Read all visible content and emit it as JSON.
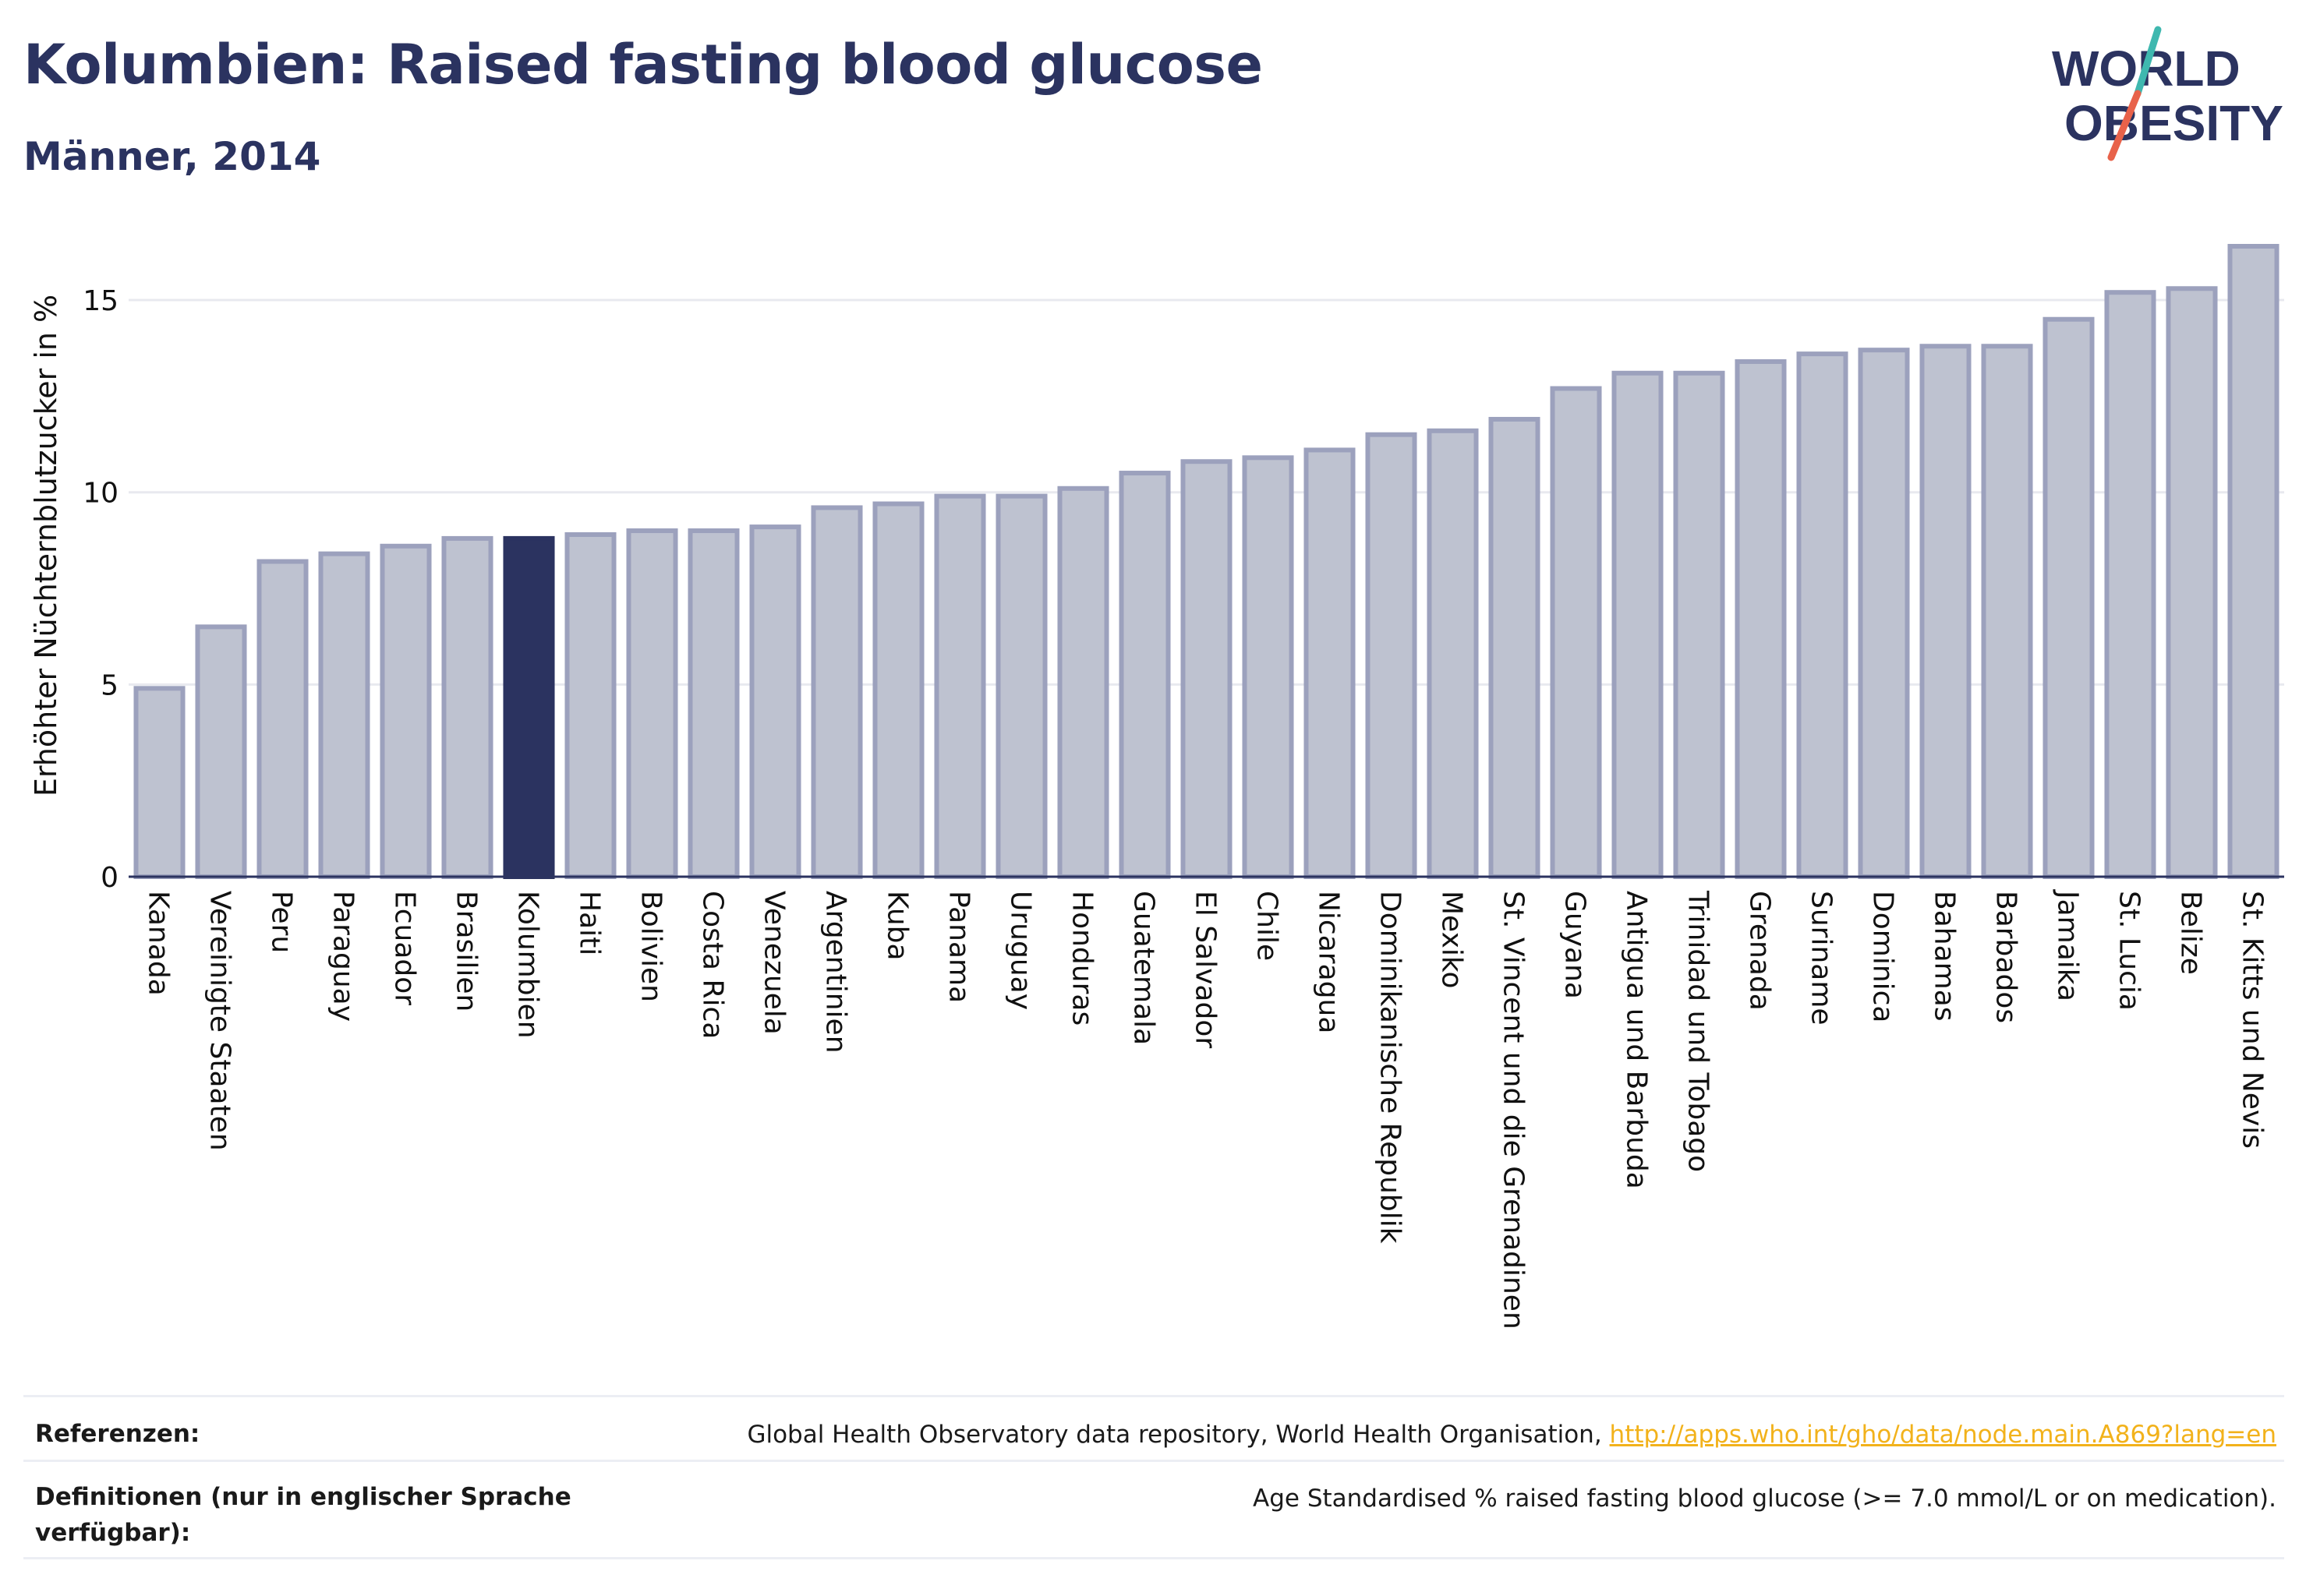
{
  "header": {
    "title": "Kolumbien: Raised fasting blood glucose",
    "subtitle": "Männer, 2014"
  },
  "logo": {
    "line1": "WORLD",
    "line2": "OBESITY"
  },
  "chart_data": {
    "type": "bar",
    "ylabel": "Erhöhter Nüchternblutzucker in %",
    "xlabel": "",
    "ylim": [
      0,
      16.4
    ],
    "yticks": [
      0,
      5,
      10,
      15
    ],
    "grid": true,
    "highlight": "Kolumbien",
    "categories": [
      "Kanada",
      "Vereinigte Staaten",
      "Peru",
      "Paraguay",
      "Ecuador",
      "Brasilien",
      "Kolumbien",
      "Haiti",
      "Bolivien",
      "Costa Rica",
      "Venezuela",
      "Argentinien",
      "Kuba",
      "Panama",
      "Uruguay",
      "Honduras",
      "Guatemala",
      "El Salvador",
      "Chile",
      "Nicaragua",
      "Dominikanische Republik",
      "Mexiko",
      "St. Vincent und die Grenadinen",
      "Guyana",
      "Antigua und Barbuda",
      "Trinidad und Tobago",
      "Grenada",
      "Suriname",
      "Dominica",
      "Bahamas",
      "Barbados",
      "Jamaika",
      "St. Lucia",
      "Belize",
      "St. Kitts und Nevis"
    ],
    "values": [
      4.9,
      6.5,
      8.2,
      8.4,
      8.6,
      8.8,
      8.8,
      8.9,
      9.0,
      9.0,
      9.1,
      9.6,
      9.7,
      9.9,
      9.9,
      10.1,
      10.5,
      10.8,
      10.9,
      11.1,
      11.5,
      11.6,
      11.9,
      12.7,
      13.1,
      13.1,
      13.4,
      13.6,
      13.7,
      13.8,
      13.8,
      14.5,
      15.2,
      15.3,
      16.4
    ]
  },
  "colors": {
    "bar": "#bec2d0",
    "bar_edge": "#9ca1bd",
    "highlight": "#2b3360",
    "text": "#2b3360",
    "grid": "#e8e9ef",
    "link": "#f2b21b",
    "logo_teal": "#3fb8af",
    "logo_red": "#e8624a"
  },
  "footer": {
    "references_label": "Referenzen:",
    "references_text": "Global Health Observatory data repository, World Health Organisation, ",
    "references_link": "http://apps.who.int/gho/data/node.main.A869?lang=en",
    "definitions_label": "Definitionen (nur in englischer Sprache verfügbar):",
    "definitions_text": "Age Standardised % raised fasting blood glucose (>= 7.0 mmol/L or on medication)."
  }
}
